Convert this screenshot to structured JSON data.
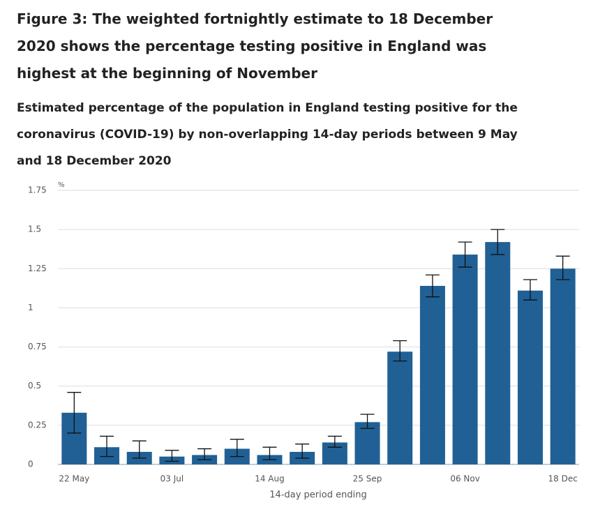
{
  "chart_data": {
    "type": "bar",
    "title": "Figure 3: The weighted fortnightly estimate to 18 December 2020 shows the percentage testing positive in England was highest at the beginning of November",
    "subtitle": "Estimated percentage of the population in England testing positive for the coronavirus (COVID-19) by non-overlapping 14-day periods between 9 May and 18 December 2020",
    "y_unit": "%",
    "x_label": "14-day period ending",
    "categories": [
      "22 May",
      null,
      null,
      "03 Jul",
      null,
      null,
      "14 Aug",
      null,
      null,
      "25 Sep",
      null,
      null,
      "06 Nov",
      null,
      null,
      "18 Dec"
    ],
    "values": [
      0.33,
      0.11,
      0.08,
      0.05,
      0.06,
      0.1,
      0.06,
      0.08,
      0.14,
      0.27,
      0.72,
      1.14,
      1.34,
      1.42,
      1.11,
      1.25
    ],
    "lower": [
      0.2,
      0.05,
      0.04,
      0.02,
      0.03,
      0.05,
      0.03,
      0.04,
      0.11,
      0.23,
      0.66,
      1.07,
      1.26,
      1.34,
      1.05,
      1.18
    ],
    "upper": [
      0.46,
      0.18,
      0.15,
      0.09,
      0.1,
      0.16,
      0.11,
      0.13,
      0.18,
      0.32,
      0.79,
      1.21,
      1.42,
      1.5,
      1.18,
      1.33
    ],
    "color": "#206095",
    "ylim": [
      0,
      1.75
    ],
    "yticks": [
      0,
      0.25,
      0.5,
      0.75,
      1,
      1.25,
      1.5,
      1.75
    ],
    "grid": true
  }
}
